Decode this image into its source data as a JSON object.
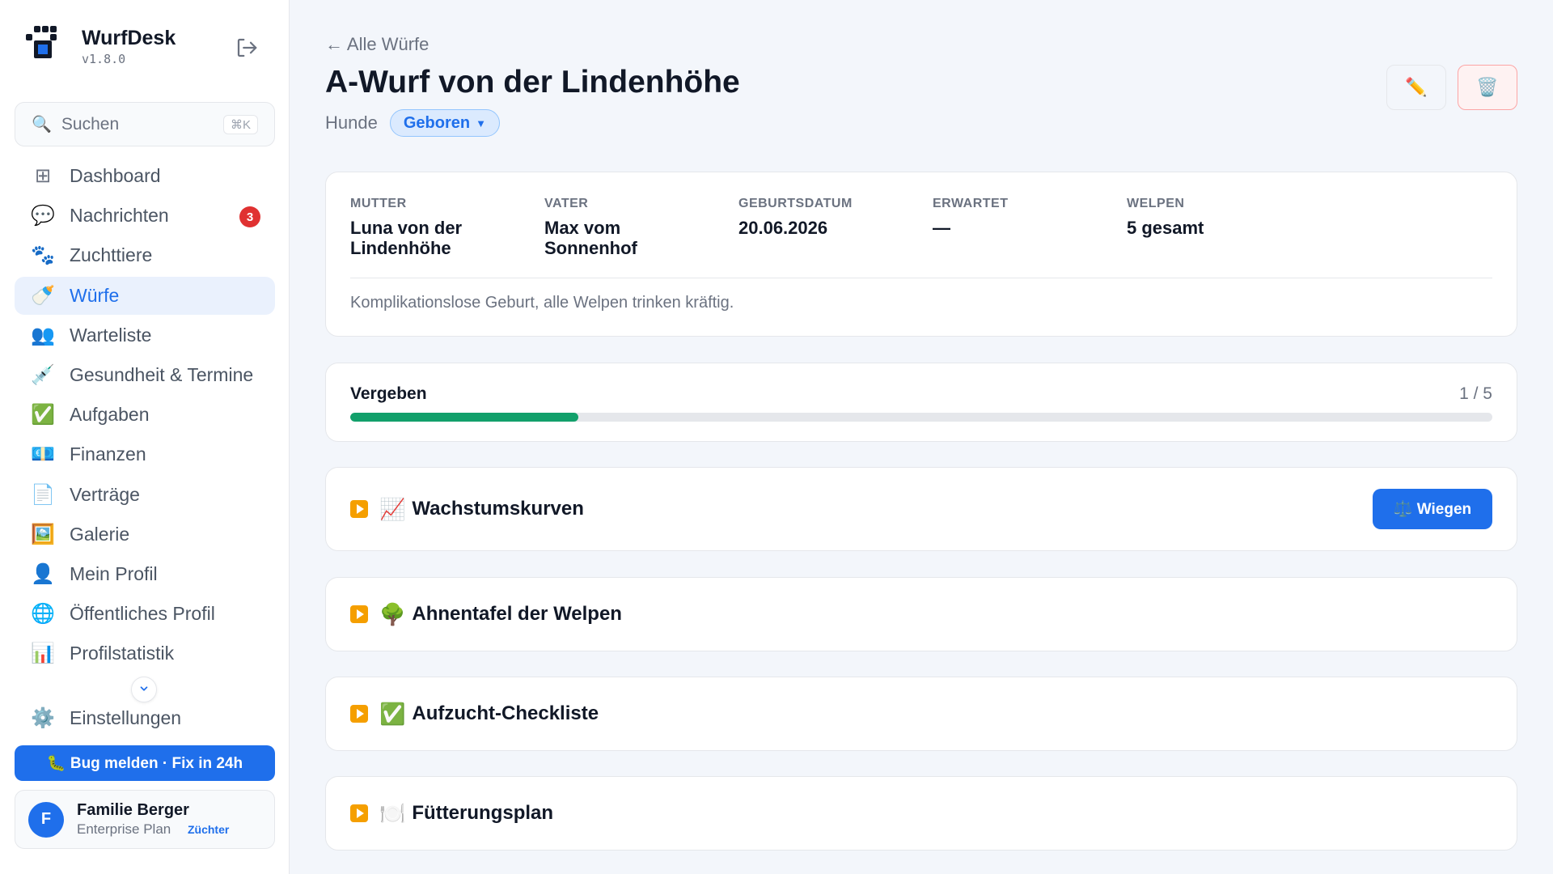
{
  "app": {
    "name": "WurfDesk",
    "version": "v1.8.0"
  },
  "search": {
    "placeholder": "Suchen",
    "shortcut": "⌘K"
  },
  "sidebar": {
    "items": [
      {
        "label": "Dashboard",
        "icon": "dashboard-icon",
        "glyph": "⊞"
      },
      {
        "label": "Nachrichten",
        "icon": "speech-bubble-icon",
        "glyph": "💬",
        "badge": "3"
      },
      {
        "label": "Zuchttiere",
        "icon": "paw-icon",
        "glyph": "🐾"
      },
      {
        "label": "Würfe",
        "icon": "baby-bottle-icon",
        "glyph": "🍼",
        "active": true
      },
      {
        "label": "Warteliste",
        "icon": "people-icon",
        "glyph": "👥"
      },
      {
        "label": "Gesundheit & Termine",
        "icon": "syringe-icon",
        "glyph": "💉"
      },
      {
        "label": "Aufgaben",
        "icon": "check-icon",
        "glyph": "✅"
      },
      {
        "label": "Finanzen",
        "icon": "euro-bill-icon",
        "glyph": "💶"
      },
      {
        "label": "Verträge",
        "icon": "document-icon",
        "glyph": "📄"
      },
      {
        "label": "Galerie",
        "icon": "picture-icon",
        "glyph": "🖼️"
      },
      {
        "label": "Mein Profil",
        "icon": "user-icon",
        "glyph": "👤"
      },
      {
        "label": "Öffentliches Profil",
        "icon": "globe-icon",
        "glyph": "🌐"
      },
      {
        "label": "Profilstatistik",
        "icon": "bar-chart-icon",
        "glyph": "📊"
      }
    ],
    "settings": {
      "label": "Einstellungen",
      "icon": "gear-icon",
      "glyph": "⚙️"
    },
    "bug_button": "🐛 Bug melden · Fix in 24h"
  },
  "user": {
    "initial": "F",
    "name": "Familie Berger",
    "plan": "Enterprise Plan",
    "role": "Züchter"
  },
  "page": {
    "back_link": "← Alle Würfe",
    "title": "A-Wurf von der Lindenhöhe",
    "species": "Hunde",
    "status": "Geboren",
    "edit_glyph": "✏️",
    "delete_glyph": "🗑️"
  },
  "litter": {
    "facts": [
      {
        "label": "MUTTER",
        "value": "Luna von der Lindenhöhe"
      },
      {
        "label": "VATER",
        "value": "Max vom Sonnenhof"
      },
      {
        "label": "GEBURTSDATUM",
        "value": "20.06.2026"
      },
      {
        "label": "ERWARTET",
        "value": "—"
      },
      {
        "label": "WELPEN",
        "value": "5 gesamt"
      }
    ],
    "note": "Komplikationslose Geburt, alle Welpen trinken kräftig."
  },
  "progress": {
    "label": "Vergeben",
    "count": "1 / 5",
    "fraction": 0.2,
    "color": "#12a06b"
  },
  "sections": [
    {
      "emoji": "📈",
      "title": "Wachstumskurven",
      "button": "⚖️ Wiegen"
    },
    {
      "emoji": "🌳",
      "title": "Ahnentafel der Welpen"
    },
    {
      "emoji": "✅",
      "title": "Aufzucht-Checkliste"
    },
    {
      "emoji": "🍽️",
      "title": "Fütterungsplan"
    }
  ],
  "colors": {
    "accent": "#1f6feb",
    "badge": "#e03131",
    "play": "#f59f00"
  }
}
